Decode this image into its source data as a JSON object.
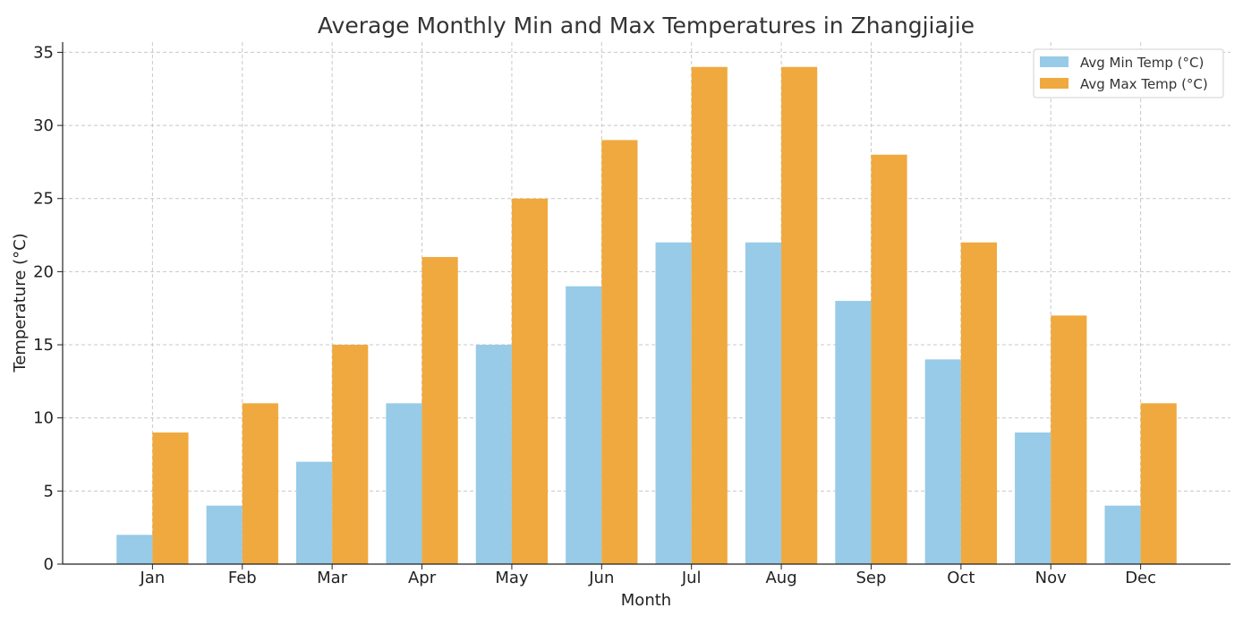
{
  "chart_data": {
    "type": "bar",
    "title": "Average Monthly Min and Max Temperatures in Zhangjiajie",
    "xlabel": "Month",
    "ylabel": "Temperature (°C)",
    "categories": [
      "Jan",
      "Feb",
      "Mar",
      "Apr",
      "May",
      "Jun",
      "Jul",
      "Aug",
      "Sep",
      "Oct",
      "Nov",
      "Dec"
    ],
    "series": [
      {
        "name": "Avg Min Temp (°C)",
        "color": "#97cbe7",
        "values": [
          2,
          4,
          7,
          11,
          15,
          19,
          22,
          22,
          18,
          14,
          9,
          4
        ]
      },
      {
        "name": "Avg Max Temp (°C)",
        "color": "#f0a93e",
        "values": [
          9,
          11,
          15,
          21,
          25,
          29,
          34,
          34,
          28,
          22,
          17,
          11
        ]
      }
    ],
    "ylim": [
      0,
      35.7
    ],
    "yticks": [
      0,
      5,
      10,
      15,
      20,
      25,
      30,
      35
    ],
    "grid": true,
    "legend_position": "top-right"
  }
}
